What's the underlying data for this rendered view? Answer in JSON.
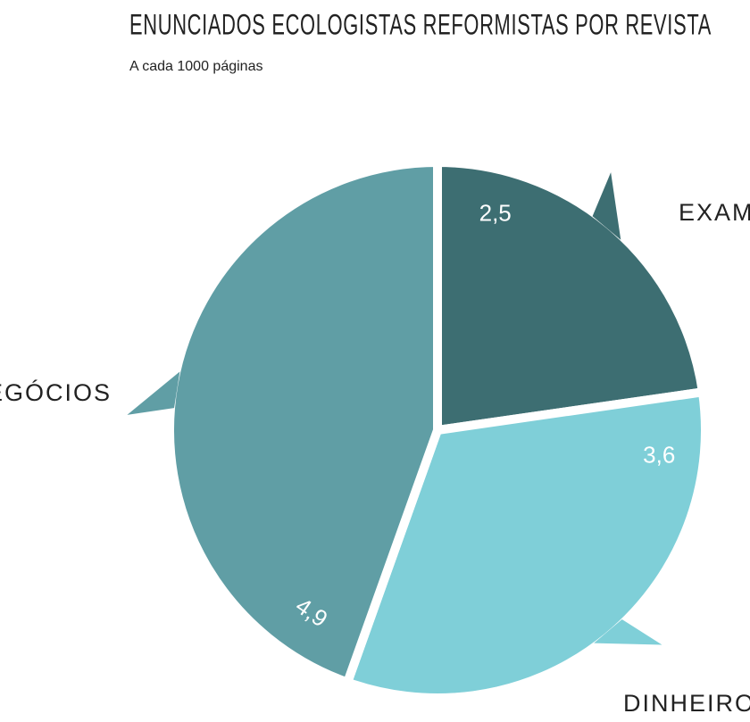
{
  "chart_data": {
    "type": "pie",
    "title": "ENUNCIADOS ECOLOGISTAS REFORMISTAS POR REVISTA",
    "subtitle": "A cada 1000 páginas",
    "categories": [
      "EXAME",
      "DINHEIRO",
      "NEGÓCIOS"
    ],
    "values": [
      2.5,
      3.6,
      4.9
    ],
    "value_labels": [
      "2,5",
      "3,6",
      "4,9"
    ],
    "colors": [
      "#3d6e72",
      "#7fcfd8",
      "#609ea5"
    ]
  }
}
